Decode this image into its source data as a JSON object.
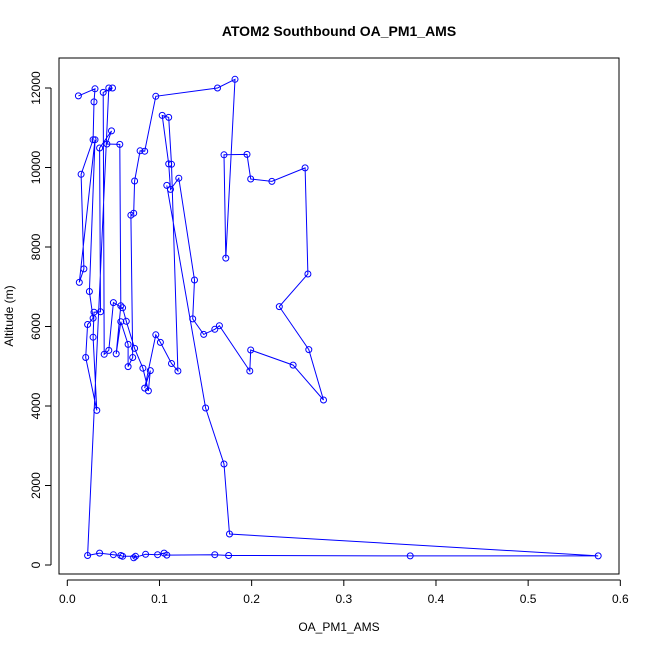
{
  "chart_data": {
    "type": "line",
    "title": "ATOM2 Southbound OA_PM1_AMS",
    "xlabel": "OA_PM1_AMS",
    "ylabel": "Altitude (m)",
    "xlim": [
      0.0,
      0.6
    ],
    "ylim": [
      0,
      12000
    ],
    "x_ticks": [
      "0.0",
      "0.1",
      "0.2",
      "0.3",
      "0.4",
      "0.5",
      "0.6"
    ],
    "y_ticks": [
      "0",
      "2000",
      "4000",
      "6000",
      "8000",
      "10000",
      "12000"
    ],
    "grid": false,
    "marker": "open-circle",
    "series_color": "#0000ff",
    "series": [
      {
        "points": [
          [
            0.012,
            11800
          ],
          [
            0.03,
            11980
          ],
          [
            0.029,
            11650
          ],
          [
            0.028,
            10700
          ],
          [
            0.015,
            9830
          ],
          [
            0.018,
            7450
          ],
          [
            0.013,
            7110
          ],
          [
            0.03,
            10700
          ],
          [
            0.024,
            6880
          ],
          [
            0.028,
            6210
          ],
          [
            0.022,
            6050
          ],
          [
            0.02,
            5220
          ],
          [
            0.032,
            3890
          ],
          [
            0.028,
            5730
          ],
          [
            0.029,
            6360
          ],
          [
            0.036,
            6370
          ],
          [
            0.035,
            10490
          ],
          [
            0.048,
            10920
          ],
          [
            0.043,
            10590
          ],
          [
            0.057,
            10580
          ],
          [
            0.058,
            6520
          ],
          [
            0.053,
            5310
          ],
          [
            0.058,
            6120
          ],
          [
            0.066,
            5550
          ],
          [
            0.066,
            4990
          ],
          [
            0.071,
            5220
          ],
          [
            0.069,
            8800
          ],
          [
            0.072,
            8850
          ],
          [
            0.073,
            9660
          ],
          [
            0.079,
            10420
          ],
          [
            0.084,
            10410
          ],
          [
            0.096,
            11790
          ],
          [
            0.163,
            12000
          ],
          [
            0.182,
            12220
          ],
          [
            0.172,
            7720
          ],
          [
            0.17,
            10320
          ],
          [
            0.195,
            10330
          ],
          [
            0.199,
            9710
          ],
          [
            0.222,
            9650
          ],
          [
            0.258,
            9990
          ],
          [
            0.261,
            7320
          ],
          [
            0.23,
            6500
          ],
          [
            0.262,
            5420
          ],
          [
            0.278,
            4150
          ],
          [
            0.245,
            5030
          ],
          [
            0.199,
            5410
          ],
          [
            0.198,
            4880
          ],
          [
            0.165,
            6020
          ],
          [
            0.16,
            5930
          ],
          [
            0.148,
            5800
          ],
          [
            0.136,
            6190
          ],
          [
            0.138,
            7170
          ],
          [
            0.121,
            9730
          ],
          [
            0.112,
            9450
          ],
          [
            0.11,
            10090
          ],
          [
            0.103,
            11310
          ],
          [
            0.11,
            11260
          ],
          [
            0.113,
            10080
          ],
          [
            0.12,
            4880
          ],
          [
            0.113,
            5070
          ],
          [
            0.101,
            5600
          ],
          [
            0.096,
            5790
          ],
          [
            0.084,
            4450
          ],
          [
            0.09,
            4890
          ],
          [
            0.088,
            4380
          ],
          [
            0.082,
            4950
          ],
          [
            0.073,
            5450
          ],
          [
            0.064,
            6130
          ],
          [
            0.06,
            6470
          ],
          [
            0.05,
            6600
          ],
          [
            0.045,
            5400
          ],
          [
            0.04,
            5300
          ],
          [
            0.039,
            11890
          ],
          [
            0.049,
            12000
          ],
          [
            0.045,
            12000
          ],
          [
            0.022,
            240
          ],
          [
            0.035,
            300
          ],
          [
            0.05,
            260
          ],
          [
            0.058,
            240
          ],
          [
            0.06,
            220
          ],
          [
            0.074,
            220
          ],
          [
            0.072,
            180
          ],
          [
            0.085,
            270
          ],
          [
            0.098,
            260
          ],
          [
            0.105,
            300
          ],
          [
            0.108,
            250
          ],
          [
            0.16,
            260
          ],
          [
            0.175,
            240
          ],
          [
            0.372,
            230
          ],
          [
            0.576,
            230
          ],
          [
            0.176,
            780
          ],
          [
            0.17,
            2540
          ],
          [
            0.15,
            3950
          ],
          [
            0.108,
            9550
          ]
        ]
      }
    ]
  }
}
